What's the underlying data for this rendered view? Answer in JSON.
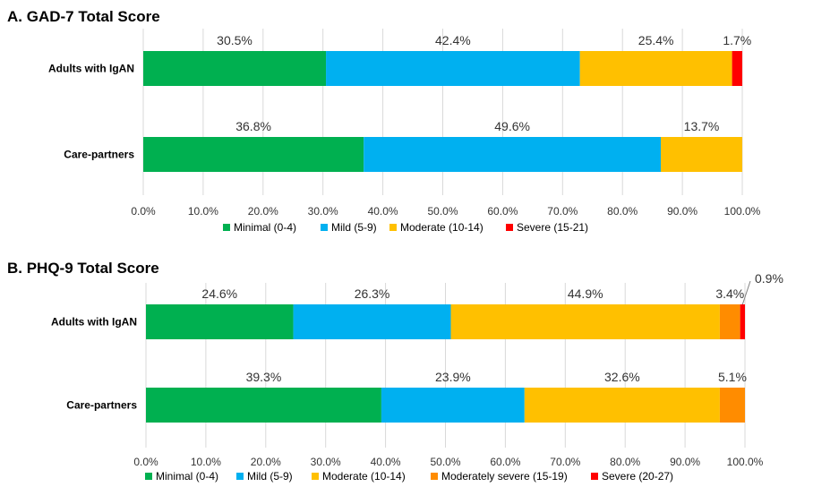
{
  "chart_data": [
    {
      "type": "bar",
      "orientation": "horizontal",
      "stacked": true,
      "title": "A. GAD-7 Total Score",
      "categories": [
        "Adults with IgAN",
        "Care-partners"
      ],
      "series": [
        {
          "name": "Minimal (0-4)",
          "color": "#00b050",
          "values": [
            30.5,
            36.8
          ],
          "labels": [
            "30.5%",
            "36.8%"
          ]
        },
        {
          "name": "Mild (5-9)",
          "color": "#00b0f0",
          "values": [
            42.4,
            49.6
          ],
          "labels": [
            "42.4%",
            "49.6%"
          ]
        },
        {
          "name": "Moderate (10-14)",
          "color": "#ffc000",
          "values": [
            25.4,
            13.7
          ],
          "labels": [
            "25.4%",
            "13.7%"
          ]
        },
        {
          "name": "Severe (15-21)",
          "color": "#ff0000",
          "values": [
            1.7,
            0
          ],
          "labels": [
            "1.7%",
            ""
          ]
        }
      ],
      "xlim": [
        0,
        100
      ],
      "xticks": [
        "0.0%",
        "10.0%",
        "20.0%",
        "30.0%",
        "40.0%",
        "50.0%",
        "60.0%",
        "70.0%",
        "80.0%",
        "90.0%",
        "100.0%"
      ],
      "grid": true,
      "legend": "bottom"
    },
    {
      "type": "bar",
      "orientation": "horizontal",
      "stacked": true,
      "title": "B. PHQ-9 Total Score",
      "categories": [
        "Adults with IgAN",
        "Care-partners"
      ],
      "series": [
        {
          "name": "Minimal (0-4)",
          "color": "#00b050",
          "values": [
            24.6,
            39.3
          ],
          "labels": [
            "24.6%",
            "39.3%"
          ]
        },
        {
          "name": "Mild (5-9)",
          "color": "#00b0f0",
          "values": [
            26.3,
            23.9
          ],
          "labels": [
            "26.3%",
            "23.9%"
          ]
        },
        {
          "name": "Moderate (10-14)",
          "color": "#ffc000",
          "values": [
            44.9,
            32.6
          ],
          "labels": [
            "44.9%",
            "32.6%"
          ]
        },
        {
          "name": "Moderately severe (15-19)",
          "color": "#ff8c00",
          "values": [
            3.4,
            5.1
          ],
          "labels": [
            "3.4%",
            "5.1%"
          ]
        },
        {
          "name": "Severe (20-27)",
          "color": "#ff0000",
          "values": [
            0.9,
            0
          ],
          "labels": [
            "0.9%",
            ""
          ]
        }
      ],
      "xlim": [
        0,
        100
      ],
      "xticks": [
        "0.0%",
        "10.0%",
        "20.0%",
        "30.0%",
        "40.0%",
        "50.0%",
        "60.0%",
        "70.0%",
        "80.0%",
        "90.0%",
        "100.0%"
      ],
      "grid": true,
      "legend": "bottom"
    }
  ]
}
